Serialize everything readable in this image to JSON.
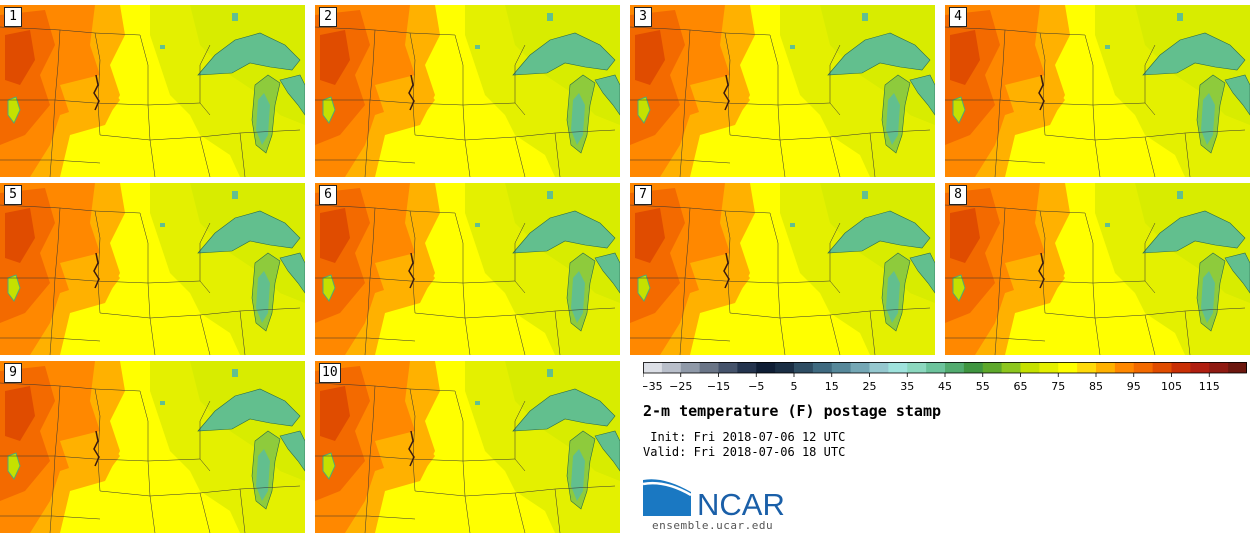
{
  "panels": [
    {
      "label": "1"
    },
    {
      "label": "2"
    },
    {
      "label": "3"
    },
    {
      "label": "4"
    },
    {
      "label": "5"
    },
    {
      "label": "6"
    },
    {
      "label": "7"
    },
    {
      "label": "8"
    },
    {
      "label": "9"
    },
    {
      "label": "10"
    }
  ],
  "colorbar": {
    "ticks": [
      "−35",
      "−25",
      "−15",
      "−5",
      "5",
      "15",
      "25",
      "35",
      "45",
      "55",
      "65",
      "75",
      "85",
      "95",
      "105",
      "115"
    ],
    "colors": [
      "#dcdfe6",
      "#b9bfca",
      "#8f99a8",
      "#6a7587",
      "#45536b",
      "#24344e",
      "#0f1e35",
      "#1a2e44",
      "#2e4d63",
      "#3f6a80",
      "#56889a",
      "#74a7b5",
      "#95c8cf",
      "#9fe3dd",
      "#8cd8bf",
      "#6cc39c",
      "#52ab6f",
      "#3f9540",
      "#5ea82b",
      "#8dc61e",
      "#c5e100",
      "#e4f000",
      "#ffff00",
      "#ffda0a",
      "#ffb100",
      "#ff8800",
      "#f36a00",
      "#e04c00",
      "#c92f05",
      "#b01e10",
      "#8f1a12",
      "#6c170f"
    ]
  },
  "title": "2-m temperature (F) postage stamp",
  "init_line": " Init: Fri 2018-07-06 12 UTC",
  "valid_line": "Valid: Fri 2018-07-06 18 UTC",
  "logo_text": "NCAR",
  "site": "ensemble.ucar.edu",
  "colors": {
    "lake": "#62bf8e",
    "land_yellow": "#ffff00",
    "land_green": "#d8ec00",
    "orange": "#ffa500",
    "dark_orange": "#ff6f00",
    "red": "#f04a00",
    "ncar_blue": "#1a5fa8"
  }
}
